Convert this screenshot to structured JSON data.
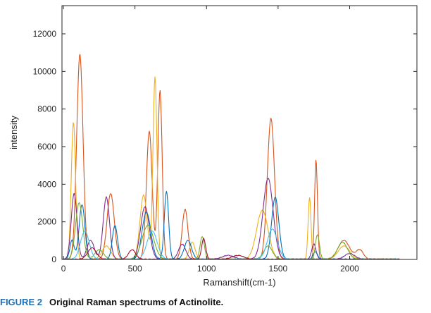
{
  "chart_data": {
    "type": "line",
    "xlabel": "Ramanshift(cm-1)",
    "ylabel": "intensity",
    "xlim": [
      -10,
      2470
    ],
    "ylim": [
      0,
      13500
    ],
    "xticks": [
      0,
      500,
      1000,
      1500,
      2000
    ],
    "yticks": [
      0,
      2000,
      4000,
      6000,
      8000,
      10000,
      12000
    ],
    "grid": false,
    "legend": "none",
    "series": [
      {
        "color": "#d95319",
        "peaks": [
          [
            115,
            10900,
            22
          ],
          [
            330,
            3500,
            25
          ],
          [
            600,
            6800,
            20
          ],
          [
            675,
            9000,
            15
          ],
          [
            850,
            2650,
            20
          ],
          [
            1450,
            7500,
            25
          ],
          [
            1765,
            5300,
            10
          ],
          [
            1960,
            1000,
            40
          ],
          [
            2070,
            500,
            25
          ]
        ]
      },
      {
        "color": "#edb120",
        "peaks": [
          [
            70,
            7300,
            15
          ],
          [
            300,
            700,
            30
          ],
          [
            560,
            3400,
            25
          ],
          [
            640,
            9700,
            14
          ],
          [
            900,
            900,
            20
          ],
          [
            1390,
            2600,
            40
          ],
          [
            1720,
            3300,
            10
          ],
          [
            1960,
            700,
            40
          ]
        ]
      },
      {
        "color": "#7e2f8e",
        "peaks": [
          [
            75,
            3500,
            20
          ],
          [
            190,
            1000,
            25
          ],
          [
            300,
            3300,
            22
          ],
          [
            570,
            2800,
            30
          ],
          [
            830,
            800,
            25
          ],
          [
            1150,
            200,
            40
          ],
          [
            1430,
            4300,
            35
          ],
          [
            1750,
            800,
            15
          ],
          [
            2000,
            300,
            35
          ]
        ]
      },
      {
        "color": "#0072bd",
        "peaks": [
          [
            60,
            1000,
            15
          ],
          [
            130,
            2900,
            20
          ],
          [
            360,
            1800,
            18
          ],
          [
            580,
            2500,
            30
          ],
          [
            720,
            3600,
            15
          ],
          [
            870,
            1000,
            25
          ],
          [
            1480,
            3300,
            25
          ],
          [
            1760,
            400,
            15
          ]
        ]
      },
      {
        "color": "#77ac30",
        "peaks": [
          [
            110,
            3000,
            25
          ],
          [
            250,
            500,
            30
          ],
          [
            590,
            1800,
            40
          ],
          [
            970,
            1200,
            15
          ],
          [
            1430,
            700,
            30
          ],
          [
            1775,
            1300,
            14
          ],
          [
            1950,
            900,
            35
          ]
        ]
      },
      {
        "color": "#4dbeee",
        "peaks": [
          [
            150,
            1500,
            30
          ],
          [
            620,
            1500,
            35
          ],
          [
            1460,
            1600,
            35
          ]
        ]
      },
      {
        "color": "#a2142f",
        "peaks": [
          [
            200,
            600,
            30
          ],
          [
            480,
            500,
            25
          ],
          [
            980,
            1100,
            14
          ],
          [
            1220,
            200,
            40
          ]
        ]
      }
    ]
  },
  "caption": {
    "label": "FIGURE 2",
    "text": "Original Raman spectrums of Actinolite."
  }
}
